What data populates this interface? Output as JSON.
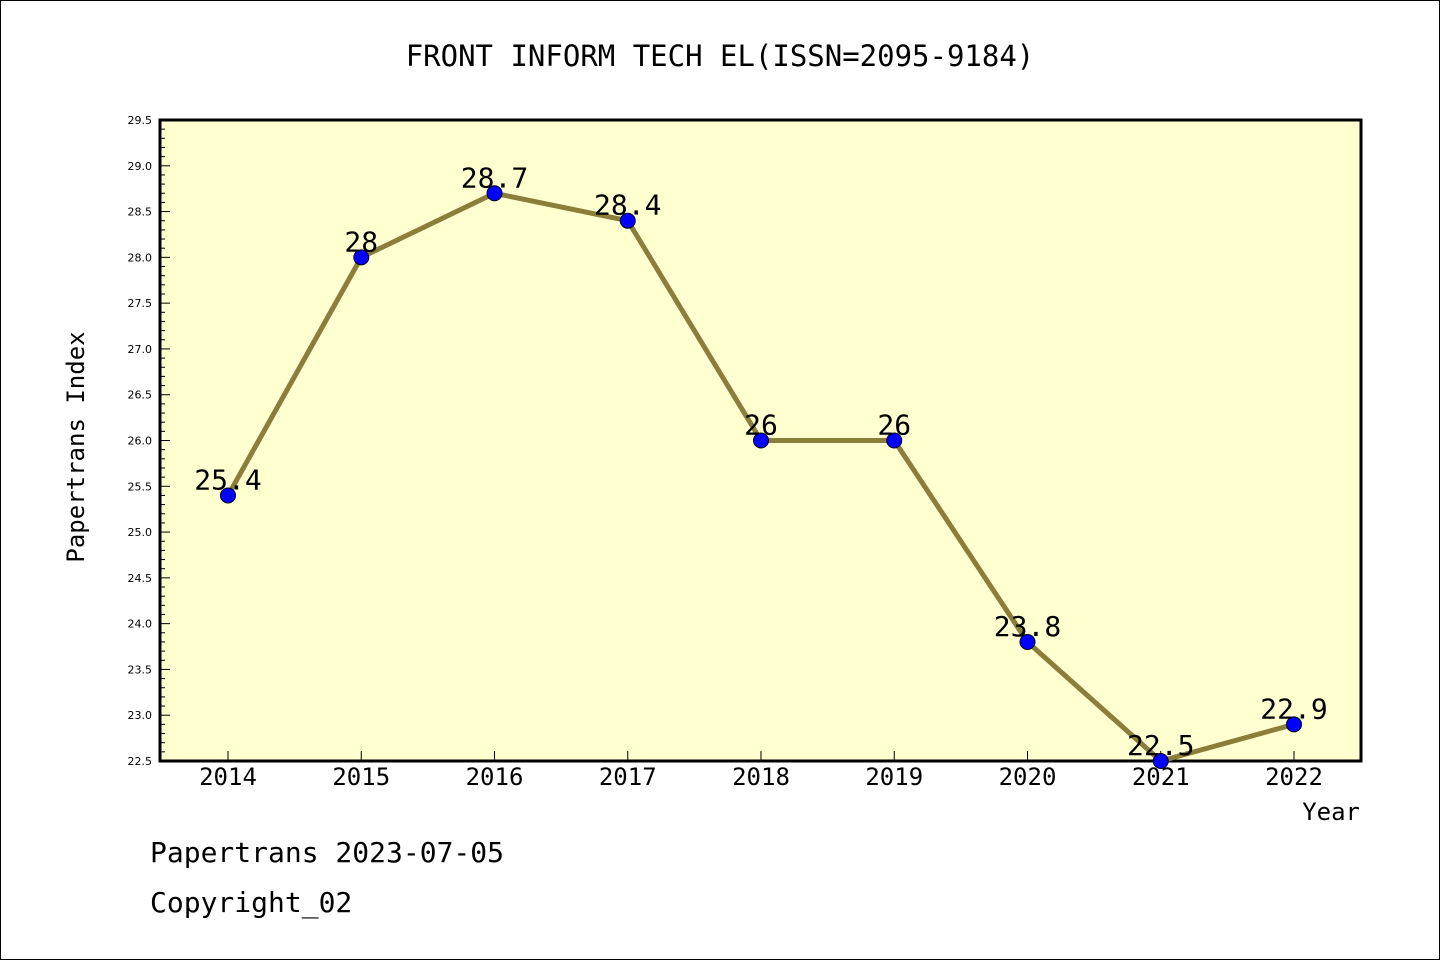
{
  "chart_data": {
    "type": "line",
    "title": "FRONT INFORM TECH EL(ISSN=2095-9184)",
    "xlabel": "Year",
    "ylabel": "Papertrans Index",
    "categories": [
      "2014",
      "2015",
      "2016",
      "2017",
      "2018",
      "2019",
      "2020",
      "2021",
      "2022"
    ],
    "series": [
      {
        "values": [
          25.4,
          28,
          28.7,
          28.4,
          26,
          26,
          23.8,
          22.5,
          22.9
        ],
        "data_labels": [
          "25.4",
          "28",
          "28.7",
          "28.4",
          "26",
          "26",
          "23.8",
          "22.5",
          "22.9"
        ]
      }
    ],
    "ylim": [
      22.5,
      29.5
    ],
    "yticks": [
      "22.5",
      "23.0",
      "23.5",
      "24.0",
      "24.5",
      "25.0",
      "25.5",
      "26.0",
      "26.5",
      "27.0",
      "27.5",
      "28.0",
      "28.5",
      "29.0",
      "29.5"
    ],
    "grid": false,
    "colors": {
      "plot_background": "#ffffd0",
      "line": "#8b7d3a",
      "marker": "#0000ff"
    }
  },
  "footer": {
    "line1": "Papertrans 2023-07-05",
    "line2": "Copyright_02"
  }
}
